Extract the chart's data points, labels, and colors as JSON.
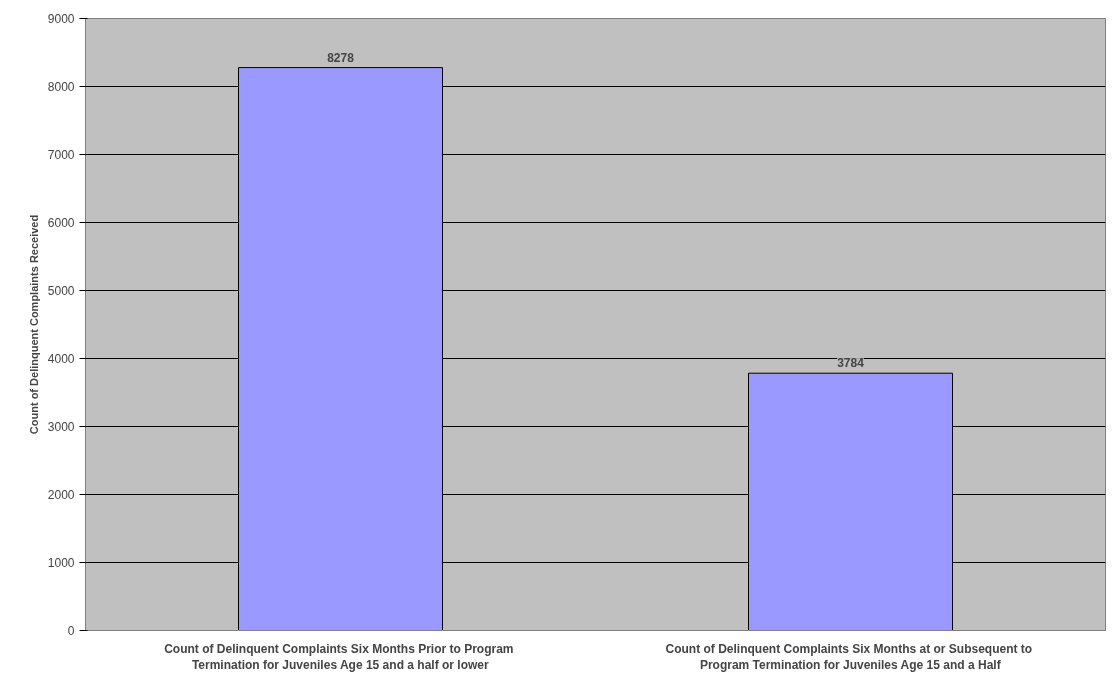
{
  "chart_data": {
    "type": "bar",
    "ylabel": "Count of Delinquent Complaints Received",
    "categories": [
      "Count of  Delinquent Complaints Six Months Prior to Program Termination for Juveniles Age 15 and a half or lower",
      "Count of  Delinquent Complaints Six Months at or Subsequent to Program Termination for Juveniles Age 15 and a Half"
    ],
    "values": [
      8278,
      3784
    ],
    "color": "#9999ff",
    "ylim": [
      0,
      9000
    ],
    "yticks": [
      0,
      1000,
      2000,
      3000,
      4000,
      5000,
      6000,
      7000,
      8000,
      9000
    ],
    "grid": "y",
    "data_labels": true
  }
}
